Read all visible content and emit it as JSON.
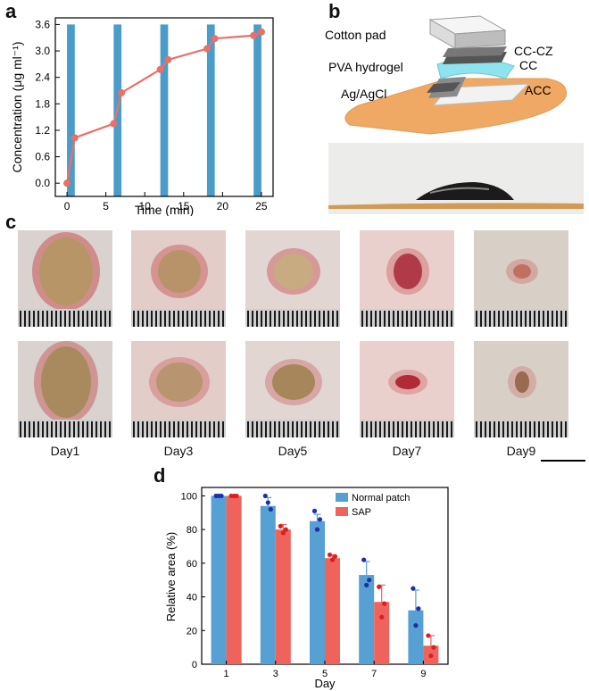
{
  "panel_labels": [
    "a",
    "b",
    "c",
    "d"
  ],
  "colors": {
    "bar_blue": "#4a9cc9",
    "line_red": "#e8706a",
    "normal_patch": "#56a0d3",
    "sap": "#f0625c",
    "dot_blue": "#1f2fa6",
    "dot_red": "#d92020",
    "bandage": "#f0a964",
    "hydrogel": "#8fe3ef"
  },
  "panel_b": {
    "labels": {
      "cotton_pad": "Cotton pad",
      "pva_hydrogel": "PVA hydrogel",
      "ag_agcl": "Ag/AgCl",
      "cc_cz": "CC-CZ",
      "cc": "CC",
      "acc": "ACC"
    }
  },
  "panel_c": {
    "days": [
      "Day1",
      "Day3",
      "Day5",
      "Day7",
      "Day9"
    ]
  },
  "chart_data": [
    {
      "id": "a",
      "type": "line",
      "xlabel": "Time (min)",
      "ylabel": "Concentration (μg ml⁻¹)",
      "xlim": [
        -1.5,
        26.5
      ],
      "ylim": [
        -0.3,
        3.75
      ],
      "xticks": [
        0,
        5,
        10,
        15,
        20,
        25
      ],
      "yticks": [
        0.0,
        0.6,
        1.2,
        1.8,
        2.4,
        3.0,
        3.6
      ],
      "ytick_labels": [
        "0.0",
        "0.6",
        "1.2",
        "1.8",
        "2.4",
        "3.0",
        "3.6"
      ],
      "shaded_bands": [
        {
          "x0": 0.0,
          "x1": 1.0,
          "y1": 3.6
        },
        {
          "x0": 6.0,
          "x1": 7.0,
          "y1": 3.6
        },
        {
          "x0": 12.0,
          "x1": 13.0,
          "y1": 3.6
        },
        {
          "x0": 18.0,
          "x1": 19.0,
          "y1": 3.6
        },
        {
          "x0": 24.0,
          "x1": 25.0,
          "y1": 3.6
        }
      ],
      "x": [
        0,
        1,
        6,
        7,
        12,
        13,
        18,
        19,
        24,
        25
      ],
      "y": [
        0.0,
        1.03,
        1.35,
        2.05,
        2.58,
        2.8,
        3.05,
        3.28,
        3.35,
        3.43
      ]
    },
    {
      "id": "d",
      "type": "bar",
      "xlabel": "Day",
      "ylabel": "Relative area (%)",
      "categories": [
        "1",
        "3",
        "5",
        "7",
        "9"
      ],
      "ylim": [
        0,
        105
      ],
      "yticks": [
        0,
        20,
        40,
        60,
        80,
        100
      ],
      "legend_position": "top-right",
      "series": [
        {
          "name": "Normal patch",
          "values": [
            100,
            94,
            85,
            53,
            32
          ],
          "errors": [
            0,
            5,
            4,
            8,
            12
          ],
          "points": [
            [
              100,
              100,
              100
            ],
            [
              100,
              92,
              96
            ],
            [
              91,
              86,
              80
            ],
            [
              62,
              50,
              47
            ],
            [
              45,
              33,
              23
            ]
          ]
        },
        {
          "name": "SAP",
          "values": [
            100,
            80,
            63,
            37,
            11
          ],
          "errors": [
            0,
            3,
            2,
            10,
            6
          ],
          "points": [
            [
              100,
              100,
              100
            ],
            [
              82,
              80,
              78
            ],
            [
              65,
              64,
              62
            ],
            [
              46,
              36,
              28
            ],
            [
              17,
              10,
              5
            ]
          ]
        }
      ]
    }
  ]
}
